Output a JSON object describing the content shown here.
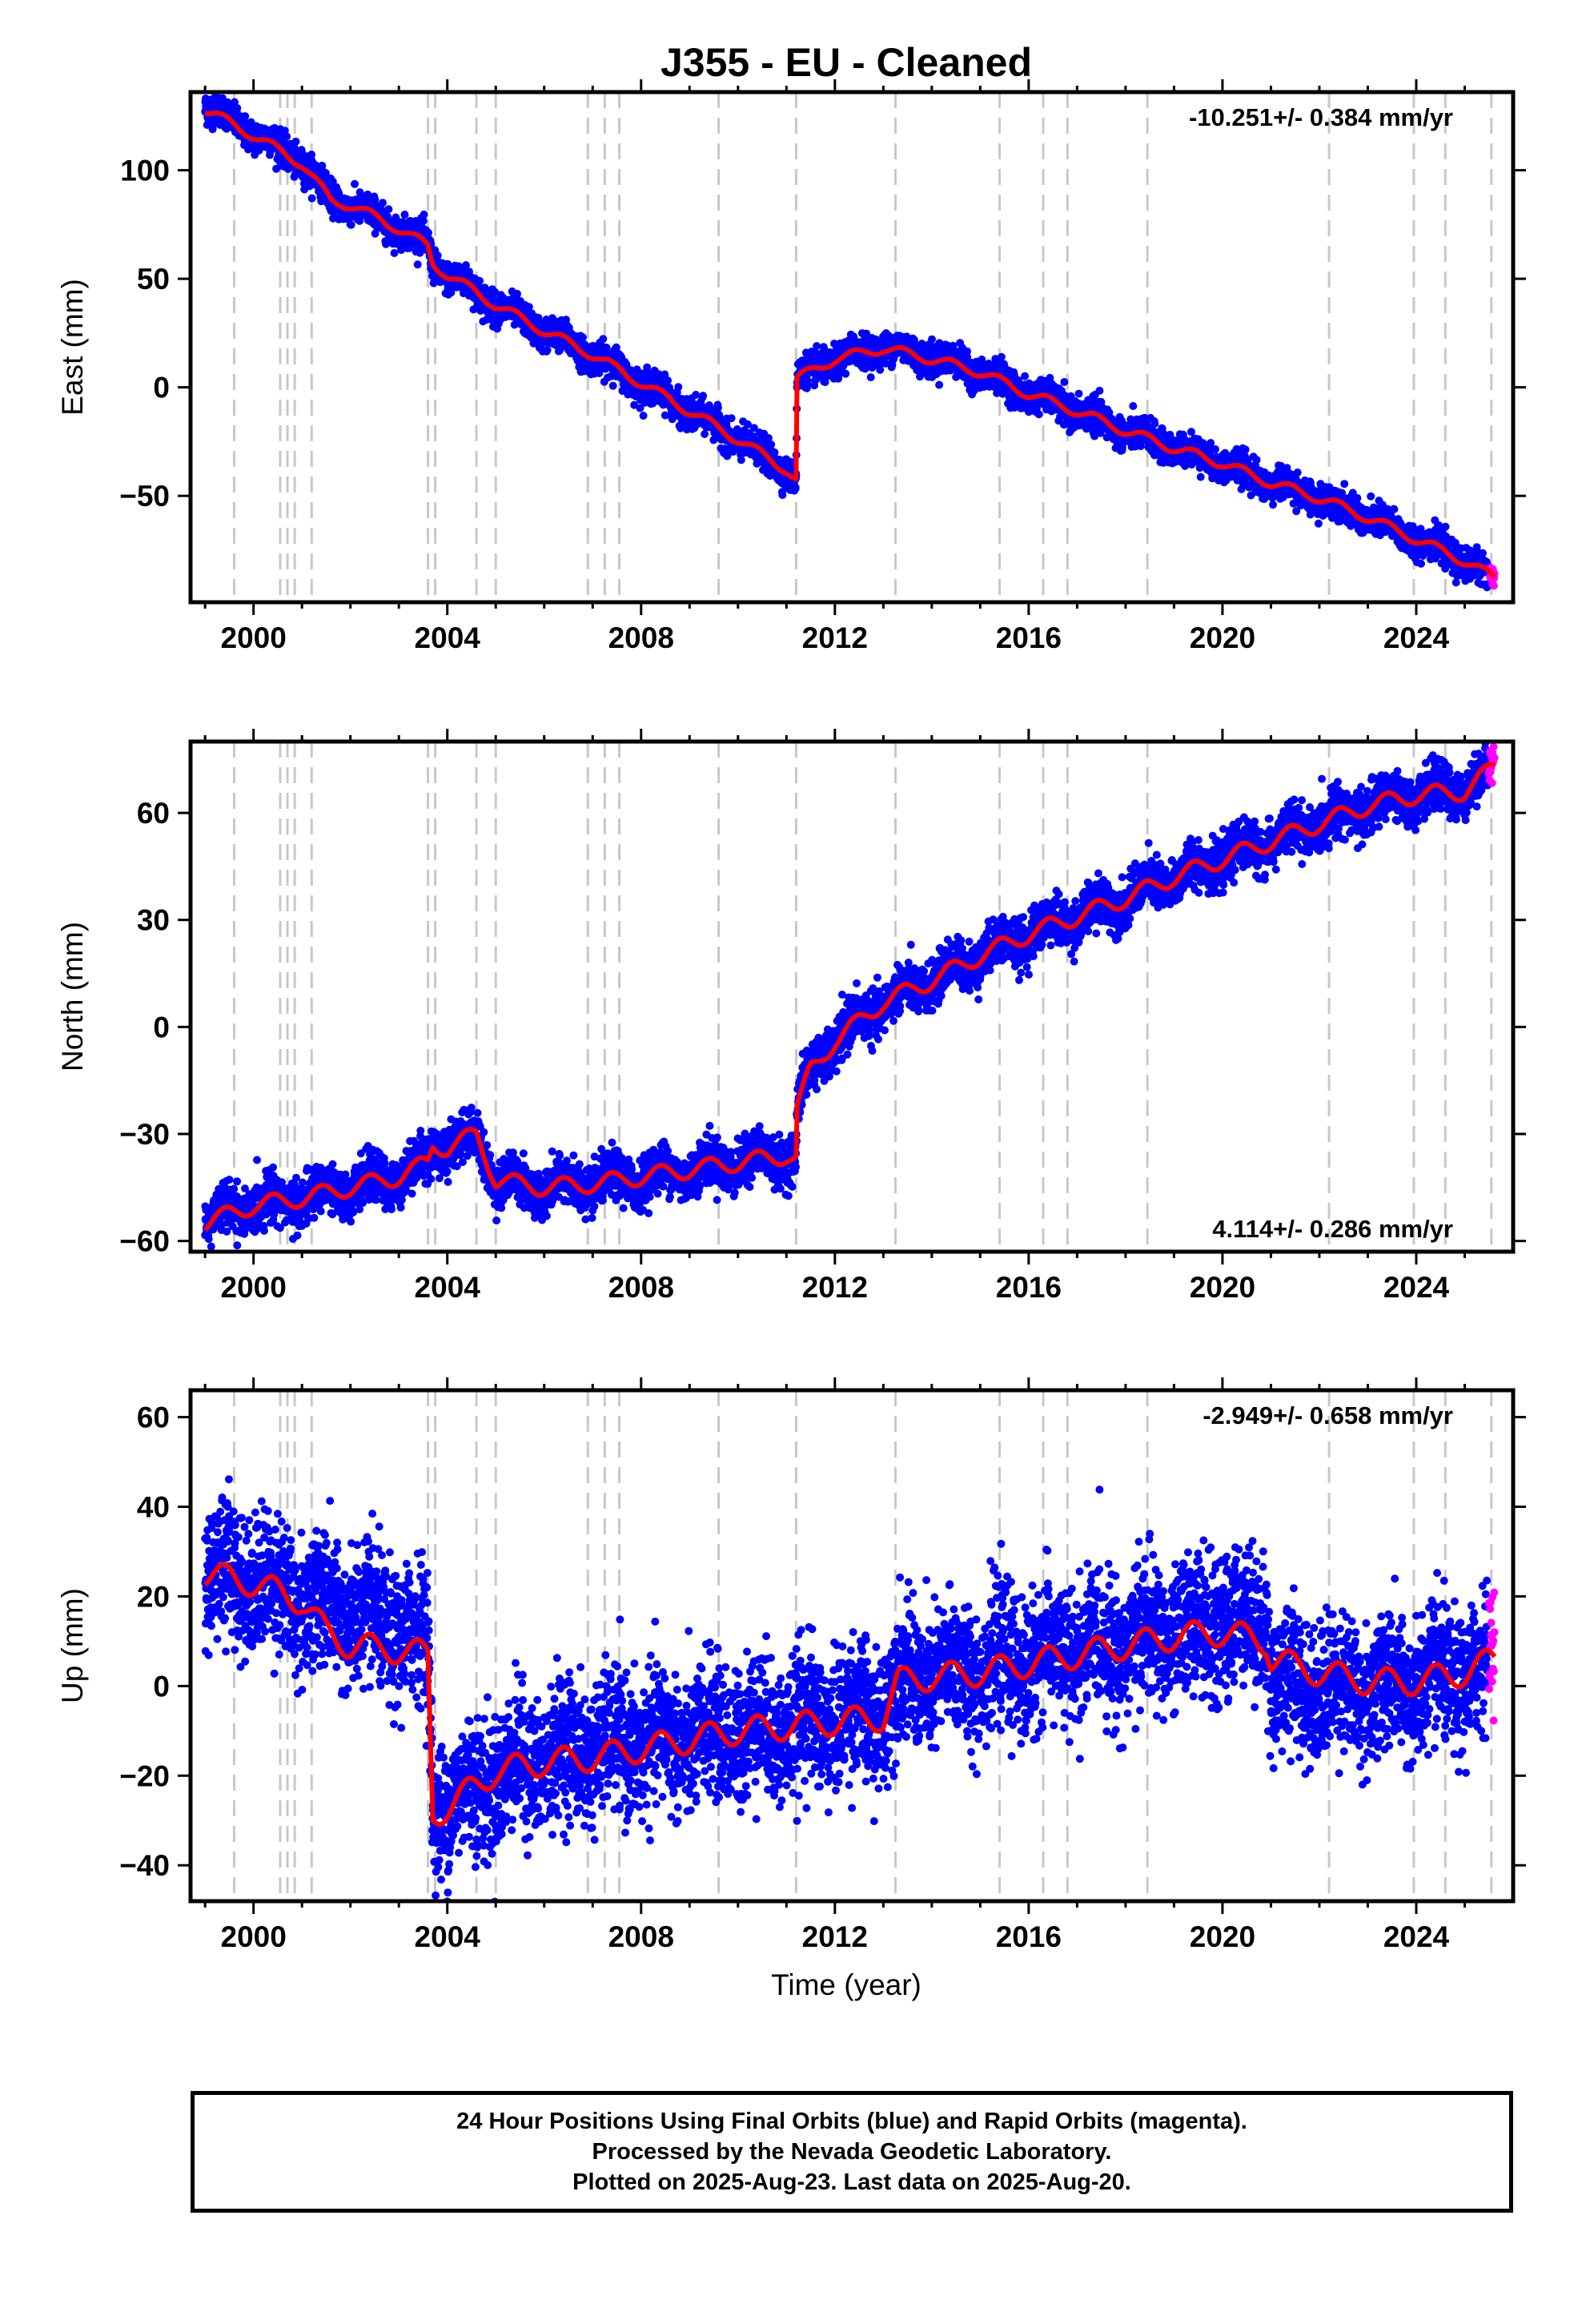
{
  "page_title": "J355  - EU - Cleaned",
  "xlabel": "Time (year)",
  "footer": {
    "line1": "24 Hour Positions Using Final Orbits (blue) and Rapid Orbits (magenta).",
    "line2": "Processed by the Nevada Geodetic Laboratory.",
    "line3": "Plotted on 2025-Aug-23. Last data on 2025-Aug-20."
  },
  "colors": {
    "final_orbits": "#0000ff",
    "rapid_orbits": "#ff00ff",
    "model": "#ff0000",
    "event_lines": "#c8c8c8"
  },
  "chart_data": [
    {
      "type": "scatter",
      "title": "",
      "ylabel": "East (mm)",
      "rate_label": "-10.251+/- 0.384 mm/yr",
      "rate_position": "top-right",
      "xlim": [
        1998.7,
        2026.0
      ],
      "ylim": [
        -99,
        136
      ],
      "xticks": [
        2000,
        2004,
        2008,
        2012,
        2016,
        2020,
        2024
      ],
      "yticks": [
        -50,
        0,
        50,
        100
      ],
      "ytick_labels": [
        "−50",
        "0",
        "50",
        "100"
      ],
      "event_lines": [
        1999.6,
        2000.55,
        2000.7,
        2000.85,
        2001.2,
        2003.6,
        2003.75,
        2004.6,
        2005.0,
        2006.9,
        2007.25,
        2007.55,
        2009.6,
        2011.2,
        2013.25,
        2015.4,
        2016.3,
        2016.8,
        2018.45,
        2022.2,
        2023.95,
        2024.6,
        2025.55
      ],
      "series": [
        {
          "role": "final_orbits",
          "data_start": 1999.0,
          "data_end": 2025.48,
          "x": [
            1999.0,
            2000.0,
            2001.0,
            2001.6,
            2002.0,
            2003.0,
            2003.6,
            2003.7,
            2004.0,
            2005.0,
            2006.0,
            2007.0,
            2008.0,
            2009.0,
            2010.0,
            2011.0,
            2011.2,
            2011.22,
            2012.0,
            2013.0,
            2014.0,
            2015.0,
            2016.0,
            2017.0,
            2018.0,
            2019.0,
            2020.0,
            2021.0,
            2022.0,
            2023.0,
            2024.0,
            2025.0,
            2025.48
          ],
          "y": [
            130,
            117,
            104,
            87,
            84,
            73,
            66,
            57,
            52,
            38,
            26,
            15,
            2,
            -11,
            -24,
            -38,
            -43,
            4,
            13,
            19,
            14,
            7,
            -3,
            -11,
            -20,
            -28,
            -35,
            -44,
            -51,
            -60,
            -70,
            -80,
            -86
          ],
          "spread": 3.5
        },
        {
          "role": "rapid_orbits",
          "data_start": 2025.5,
          "data_end": 2025.62,
          "x": [
            2025.5,
            2025.62
          ],
          "y": [
            -86,
            -92
          ],
          "spread": 2.0
        }
      ],
      "model": {
        "x": [
          1999.0,
          2000.0,
          2001.0,
          2001.6,
          2002.0,
          2003.0,
          2003.6,
          2003.7,
          2004.0,
          2005.0,
          2006.0,
          2007.0,
          2008.0,
          2009.0,
          2010.0,
          2011.0,
          2011.2,
          2011.22,
          2012.0,
          2013.0,
          2014.0,
          2015.0,
          2016.0,
          2017.0,
          2018.0,
          2019.0,
          2020.0,
          2021.0,
          2022.0,
          2023.0,
          2024.0,
          2025.0,
          2025.62
        ],
        "y": [
          128,
          116,
          103,
          86,
          84,
          73,
          65,
          57,
          52,
          38,
          26,
          15,
          2,
          -11,
          -24,
          -38,
          -43,
          4,
          13,
          18,
          13,
          7,
          -3,
          -11,
          -20,
          -28,
          -35,
          -44,
          -51,
          -60,
          -70,
          -80,
          -88
        ],
        "seasonal_amplitude": 2.2
      }
    },
    {
      "type": "scatter",
      "title": "",
      "ylabel": "North (mm)",
      "rate_label": "4.114+/- 0.286 mm/yr",
      "rate_position": "bottom-right",
      "xlim": [
        1998.7,
        2026.0
      ],
      "ylim": [
        -63,
        80
      ],
      "xticks": [
        2000,
        2004,
        2008,
        2012,
        2016,
        2020,
        2024
      ],
      "yticks": [
        -60,
        -30,
        0,
        30,
        60
      ],
      "ytick_labels": [
        "−60",
        "−30",
        "0",
        "30",
        "60"
      ],
      "event_lines": [
        1999.6,
        2000.55,
        2000.7,
        2000.85,
        2001.2,
        2003.6,
        2003.75,
        2004.6,
        2005.0,
        2006.9,
        2007.25,
        2007.55,
        2009.6,
        2011.2,
        2013.25,
        2015.4,
        2016.3,
        2016.8,
        2018.45,
        2022.2,
        2023.95,
        2024.6,
        2025.55
      ],
      "series": [
        {
          "role": "final_orbits",
          "data_start": 1999.0,
          "data_end": 2025.48,
          "x": [
            1999.0,
            2000.0,
            2001.0,
            2002.0,
            2003.0,
            2003.6,
            2003.7,
            2004.0,
            2004.6,
            2005.0,
            2006.0,
            2007.0,
            2008.0,
            2009.0,
            2010.0,
            2011.0,
            2011.2,
            2011.22,
            2011.5,
            2012.0,
            2013.0,
            2014.0,
            2015.0,
            2016.0,
            2017.0,
            2018.0,
            2019.0,
            2020.0,
            2021.0,
            2022.0,
            2023.0,
            2024.0,
            2025.0,
            2025.48
          ],
          "y": [
            -54,
            -50,
            -48,
            -45,
            -42,
            -38,
            -33,
            -33,
            -31,
            -43,
            -45,
            -44,
            -42,
            -40,
            -38,
            -36,
            -37,
            -23,
            -12,
            -4,
            7,
            13,
            20,
            26,
            31,
            36,
            42,
            47,
            52,
            57,
            62,
            65,
            67,
            70
          ],
          "spread": 3.2
        },
        {
          "role": "rapid_orbits",
          "data_start": 2025.5,
          "data_end": 2025.62,
          "x": [
            2025.5,
            2025.62
          ],
          "y": [
            71,
            74
          ],
          "spread": 2.5
        }
      ],
      "model": {
        "x": [
          1999.0,
          2000.0,
          2001.0,
          2002.0,
          2003.0,
          2003.6,
          2003.7,
          2004.0,
          2004.6,
          2005.0,
          2006.0,
          2007.0,
          2008.0,
          2009.0,
          2010.0,
          2011.0,
          2011.2,
          2011.22,
          2011.5,
          2012.0,
          2013.0,
          2014.0,
          2015.0,
          2016.0,
          2017.0,
          2018.0,
          2019.0,
          2020.0,
          2021.0,
          2022.0,
          2023.0,
          2024.0,
          2025.0,
          2025.62
        ],
        "y": [
          -55,
          -50,
          -48,
          -45,
          -42,
          -38,
          -33,
          -34,
          -30,
          -43,
          -45,
          -44,
          -42,
          -40,
          -38,
          -36,
          -37,
          -23,
          -12,
          -4,
          7,
          13,
          20,
          26,
          31,
          36,
          42,
          47,
          52,
          57,
          62,
          65,
          66,
          73
        ],
        "seasonal_amplitude": 2.4
      }
    },
    {
      "type": "scatter",
      "title": "",
      "ylabel": "Up (mm)",
      "rate_label": "-2.949+/- 0.658 mm/yr",
      "rate_position": "top-right",
      "xlim": [
        1998.7,
        2026.0
      ],
      "ylim": [
        -48,
        66
      ],
      "xticks": [
        2000,
        2004,
        2008,
        2012,
        2016,
        2020,
        2024
      ],
      "yticks": [
        -40,
        -20,
        0,
        20,
        40,
        60
      ],
      "ytick_labels": [
        "−40",
        "−20",
        "0",
        "20",
        "40",
        "60"
      ],
      "event_lines": [
        1999.6,
        2000.55,
        2000.7,
        2000.85,
        2001.2,
        2003.6,
        2003.75,
        2004.6,
        2005.0,
        2006.9,
        2007.25,
        2007.55,
        2009.6,
        2011.2,
        2013.25,
        2015.4,
        2016.3,
        2016.8,
        2018.45,
        2022.2,
        2023.95,
        2024.6,
        2025.55
      ],
      "series": [
        {
          "role": "final_orbits",
          "data_start": 1999.0,
          "data_end": 2025.48,
          "x": [
            1999.0,
            2000.0,
            2001.0,
            2002.0,
            2003.0,
            2003.6,
            2003.7,
            2004.0,
            2005.0,
            2006.0,
            2007.0,
            2008.0,
            2009.0,
            2010.0,
            2011.0,
            2012.0,
            2013.0,
            2013.3,
            2014.0,
            2015.0,
            2016.0,
            2017.0,
            2018.0,
            2019.0,
            2020.0,
            2020.9,
            2021.0,
            2022.0,
            2023.0,
            2024.0,
            2025.0,
            2025.48
          ],
          "y": [
            26,
            24,
            19,
            16,
            12,
            10,
            -27,
            -26,
            -20,
            -16,
            -14,
            -13,
            -12,
            -10,
            -9,
            -7,
            -6,
            1,
            2,
            4,
            6,
            8,
            10,
            12,
            14,
            15,
            1,
            0,
            -1,
            0,
            2,
            4
          ],
          "spread": 7.5
        },
        {
          "role": "rapid_orbits",
          "data_start": 2025.5,
          "data_end": 2025.62,
          "x": [
            2025.5,
            2025.62
          ],
          "y": [
            8,
            12
          ],
          "spread": 6
        }
      ],
      "model": {
        "x": [
          1999.0,
          2000.0,
          2001.0,
          2001.5,
          2002.0,
          2003.0,
          2003.6,
          2003.7,
          2004.0,
          2005.0,
          2006.0,
          2007.0,
          2008.0,
          2009.0,
          2010.0,
          2011.0,
          2012.0,
          2013.0,
          2013.3,
          2014.0,
          2015.0,
          2016.0,
          2017.0,
          2018.0,
          2019.0,
          2020.0,
          2020.9,
          2021.0,
          2022.0,
          2023.0,
          2024.0,
          2025.0,
          2025.62
        ],
        "y": [
          25,
          23,
          19,
          12,
          9,
          8,
          7,
          -29,
          -27,
          -19,
          -17,
          -16,
          -14,
          -12,
          -10,
          -9,
          -8,
          -7,
          1,
          2,
          3,
          5,
          7,
          9,
          11,
          12,
          10,
          6,
          3,
          1,
          1,
          3,
          6
        ],
        "seasonal_amplitude": 3.0
      }
    }
  ]
}
